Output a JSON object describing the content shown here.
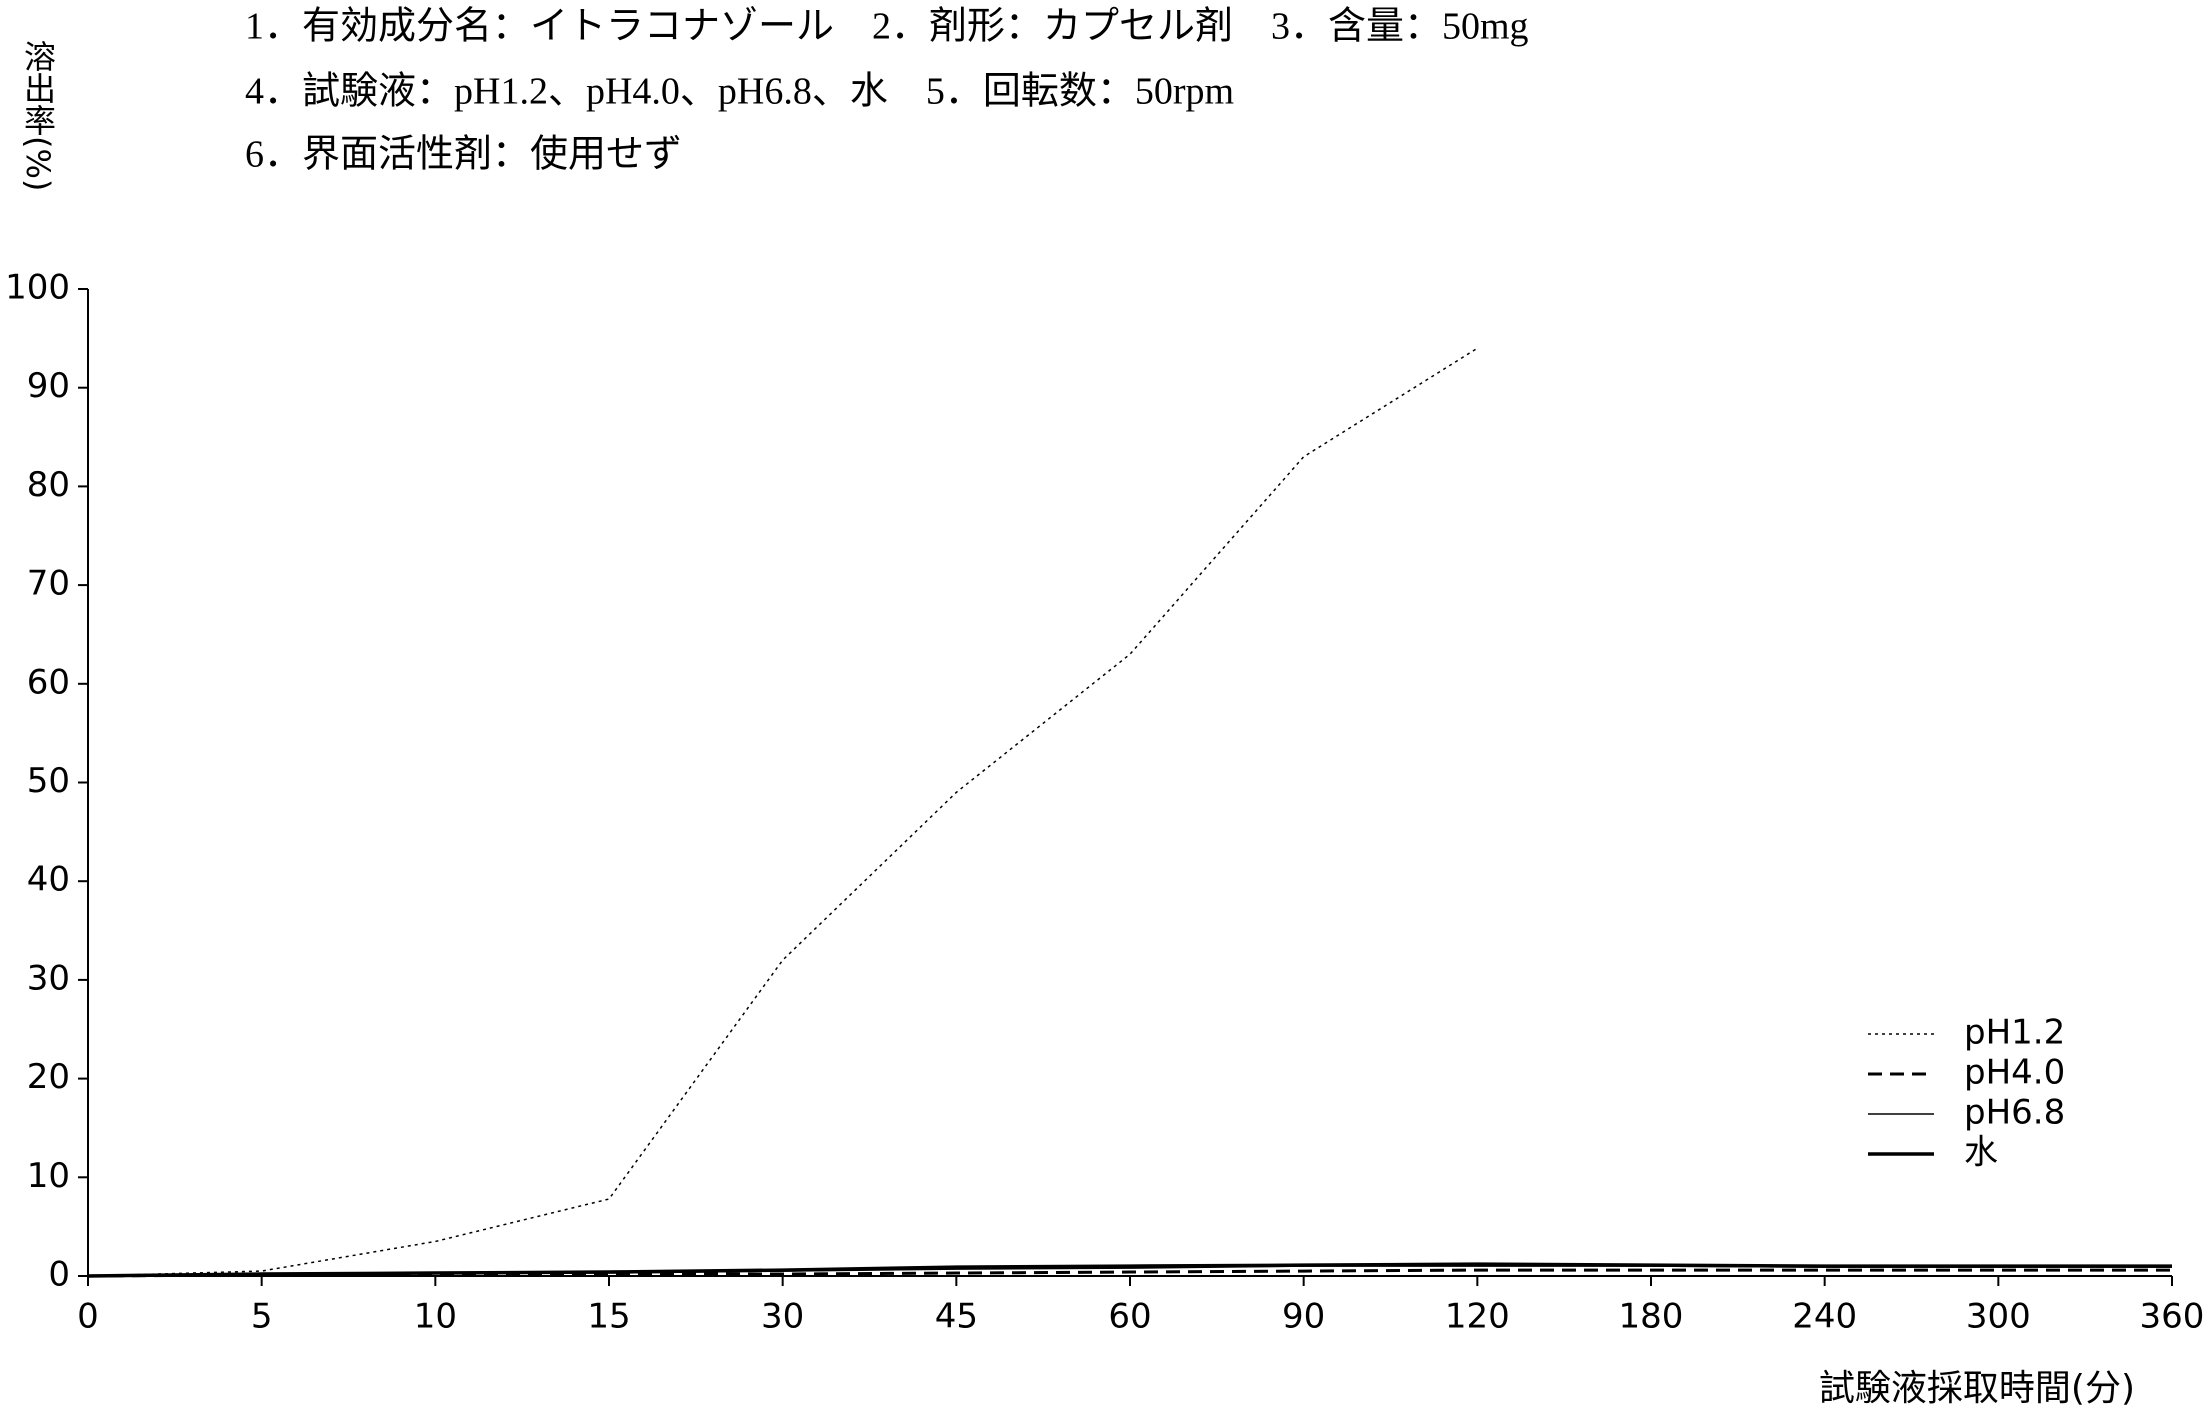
{
  "chart_data": {
    "type": "line",
    "title_lines": [
      "1．有効成分名：イトラコナゾール　2．剤形：カプセル剤　3．含量：50mg",
      "4．試験液：pH1.2、pH4.0、pH6.8、水　5．回転数：50rpm",
      "6．界面活性剤：使用せず"
    ],
    "y_label": "溶出率(%)",
    "x_label": "試験液採取時間(分)",
    "categories": [
      "0",
      "5",
      "10",
      "15",
      "30",
      "45",
      "60",
      "90",
      "120",
      "180",
      "240",
      "300",
      "360"
    ],
    "series": [
      {
        "name": "pH1.2",
        "color": "#000000",
        "line_style": "dotted",
        "width": 1.5,
        "values": [
          0,
          0.5,
          3.5,
          7.8,
          32,
          49,
          63,
          83,
          94,
          null,
          null,
          null,
          null
        ]
      },
      {
        "name": "pH4.0",
        "color": "#000000",
        "line_style": "dashed",
        "width": 3,
        "values": [
          0,
          0.1,
          0.1,
          0.2,
          0.2,
          0.3,
          0.4,
          0.5,
          0.6,
          0.6,
          0.6,
          0.6,
          0.6
        ]
      },
      {
        "name": "pH6.8",
        "color": "#000000",
        "line_style": "solid",
        "width": 1.5,
        "values": [
          0,
          0.2,
          0.3,
          0.3,
          0.5,
          0.7,
          0.8,
          1.0,
          1.0,
          1.0,
          0.9,
          0.9,
          0.9
        ]
      },
      {
        "name": "水",
        "color": "#000000",
        "line_style": "solid",
        "width": 3.5,
        "values": [
          0,
          0.2,
          0.3,
          0.4,
          0.6,
          0.9,
          1.0,
          1.1,
          1.2,
          1.1,
          1.0,
          1.0,
          1.0
        ]
      }
    ],
    "ylim": [
      0,
      100
    ],
    "yticks": [
      0,
      10,
      20,
      30,
      40,
      50,
      60,
      70,
      80,
      90,
      100
    ],
    "grid": false,
    "legend": "lower-right"
  }
}
